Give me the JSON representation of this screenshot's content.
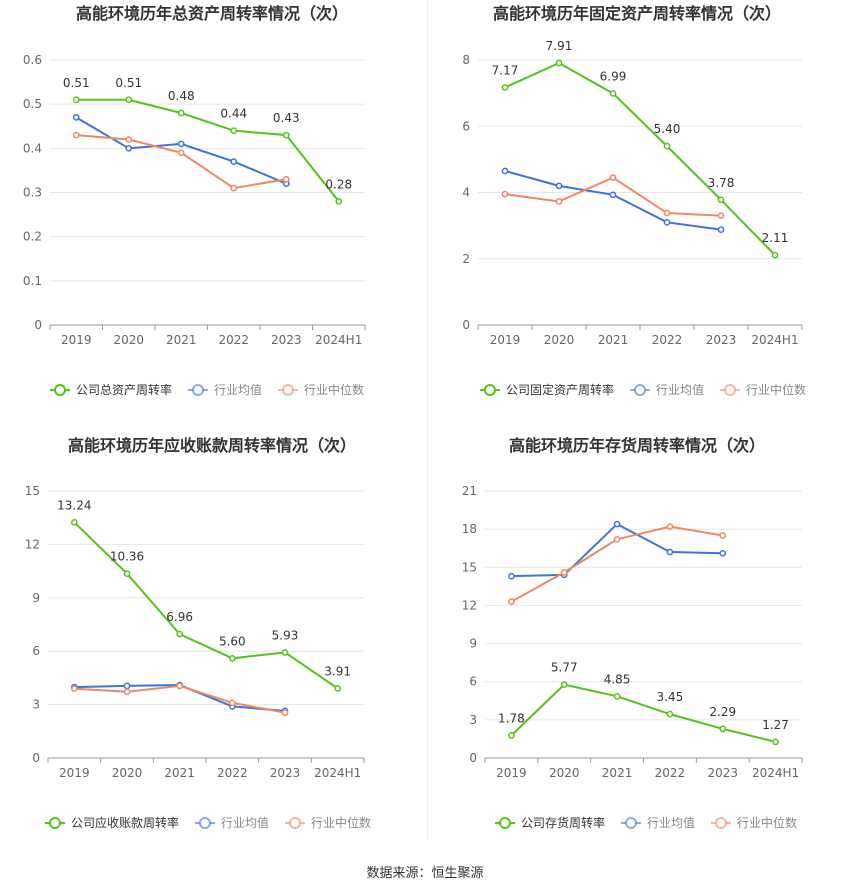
{
  "source": "数据来源：恒生聚源",
  "colors": {
    "company": "#52c41a",
    "avg": "#3b74db",
    "median": "#f0885f",
    "grid": "#e6e6e6",
    "axis": "#999999",
    "text": "#333333",
    "tick": "#666666"
  },
  "chart_data": [
    {
      "type": "line",
      "title": "高能环境历年总资产周转率情况（次）",
      "categories": [
        "2019",
        "2020",
        "2021",
        "2022",
        "2023",
        "2024H1"
      ],
      "yticks": [
        "0",
        "0.1",
        "0.2",
        "0.3",
        "0.4",
        "0.5",
        "0.6"
      ],
      "ylim": [
        0,
        0.6
      ],
      "legend": [
        "公司总资产周转率",
        "行业均值",
        "行业中位数"
      ],
      "series": [
        {
          "name": "公司总资产周转率",
          "values": [
            0.51,
            0.51,
            0.48,
            0.44,
            0.43,
            0.28
          ],
          "labels": [
            "0.51",
            "0.51",
            "0.48",
            "0.44",
            "0.43",
            "0.28"
          ]
        },
        {
          "name": "行业均值",
          "values": [
            0.47,
            0.4,
            0.41,
            0.37,
            0.32,
            null
          ]
        },
        {
          "name": "行业中位数",
          "values": [
            0.43,
            0.42,
            0.39,
            0.31,
            0.33,
            null
          ]
        }
      ]
    },
    {
      "type": "line",
      "title": "高能环境历年固定资产周转率情况（次）",
      "categories": [
        "2019",
        "2020",
        "2021",
        "2022",
        "2023",
        "2024H1"
      ],
      "yticks": [
        "0",
        "2",
        "4",
        "6",
        "8"
      ],
      "ylim": [
        0,
        8
      ],
      "legend": [
        "公司固定资产周转率",
        "行业均值",
        "行业中位数"
      ],
      "series": [
        {
          "name": "公司固定资产周转率",
          "values": [
            7.17,
            7.91,
            6.99,
            5.4,
            3.78,
            2.11
          ],
          "labels": [
            "7.17",
            "7.91",
            "6.99",
            "5.40",
            "3.78",
            "2.11"
          ]
        },
        {
          "name": "行业均值",
          "values": [
            4.65,
            4.2,
            3.93,
            3.1,
            2.88,
            null
          ]
        },
        {
          "name": "行业中位数",
          "values": [
            3.95,
            3.73,
            4.45,
            3.38,
            3.3,
            null
          ]
        }
      ]
    },
    {
      "type": "line",
      "title": "高能环境历年应收账款周转率情况（次）",
      "categories": [
        "2019",
        "2020",
        "2021",
        "2022",
        "2023",
        "2024H1"
      ],
      "yticks": [
        "0",
        "3",
        "6",
        "9",
        "12",
        "15"
      ],
      "ylim": [
        0,
        15
      ],
      "legend": [
        "公司应收账款周转率",
        "行业均值",
        "行业中位数"
      ],
      "series": [
        {
          "name": "公司应收账款周转率",
          "values": [
            13.24,
            10.36,
            6.96,
            5.6,
            5.93,
            3.91
          ],
          "labels": [
            "13.24",
            "10.36",
            "6.96",
            "5.60",
            "5.93",
            "3.91"
          ]
        },
        {
          "name": "行业均值",
          "values": [
            3.98,
            4.05,
            4.1,
            2.9,
            2.65,
            null
          ]
        },
        {
          "name": "行业中位数",
          "values": [
            3.9,
            3.72,
            4.05,
            3.1,
            2.55,
            null
          ]
        }
      ]
    },
    {
      "type": "line",
      "title": "高能环境历年存货周转率情况（次）",
      "categories": [
        "2019",
        "2020",
        "2021",
        "2022",
        "2023",
        "2024H1"
      ],
      "yticks": [
        "0",
        "3",
        "6",
        "9",
        "12",
        "15",
        "18",
        "21"
      ],
      "ylim": [
        0,
        21
      ],
      "legend": [
        "公司存货周转率",
        "行业均值",
        "行业中位数"
      ],
      "series": [
        {
          "name": "公司存货周转率",
          "values": [
            1.78,
            5.77,
            4.85,
            3.45,
            2.29,
            1.27
          ],
          "labels": [
            "1.78",
            "5.77",
            "4.85",
            "3.45",
            "2.29",
            "1.27"
          ]
        },
        {
          "name": "行业均值",
          "values": [
            14.3,
            14.4,
            18.4,
            16.2,
            16.1,
            null
          ]
        },
        {
          "name": "行业中位数",
          "values": [
            12.3,
            14.6,
            17.2,
            18.2,
            17.5,
            null
          ]
        }
      ]
    }
  ]
}
